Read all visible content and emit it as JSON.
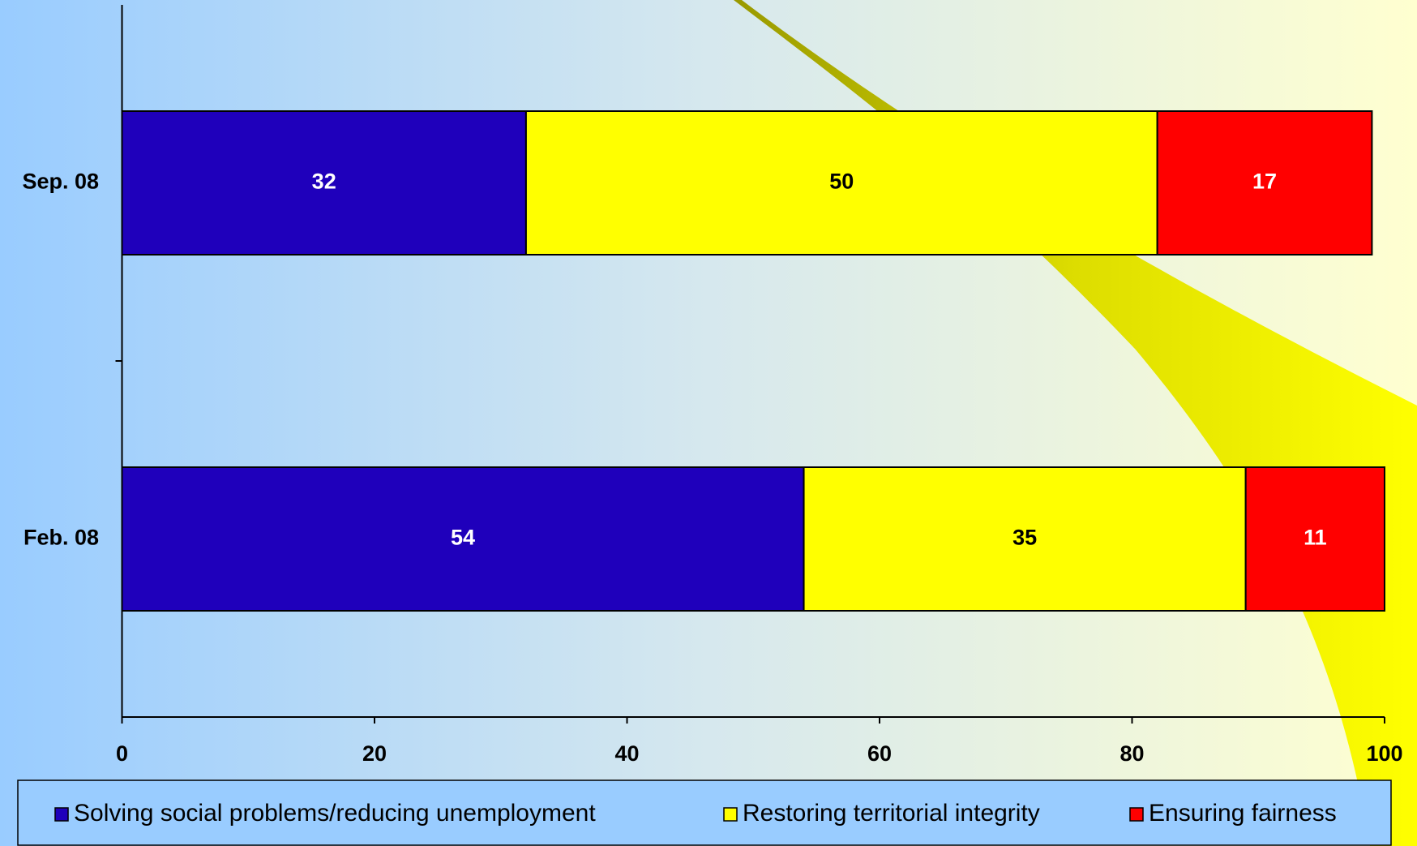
{
  "chart_data": {
    "type": "stacked-bar-horizontal",
    "categories": [
      "Sep. 08",
      "Feb. 08"
    ],
    "series": [
      {
        "name": "Solving social problems/reducing unemployment",
        "color": "#1f00bb",
        "values": [
          32,
          54
        ]
      },
      {
        "name": "Restoring territorial integrity",
        "color": "#ffff00",
        "values": [
          50,
          35
        ]
      },
      {
        "name": "Ensuring fairness",
        "color": "#ff0000",
        "values": [
          17,
          11
        ]
      }
    ],
    "xlim": [
      0,
      100
    ],
    "xticks": [
      0,
      20,
      40,
      60,
      80,
      100
    ],
    "legend": "bottom"
  }
}
